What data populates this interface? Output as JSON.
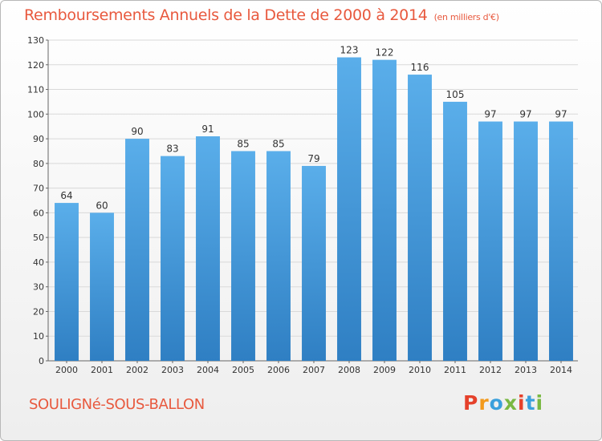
{
  "title": "Remboursements Annuels de la Dette de 2000 à 2014",
  "unit": "(en milliers d'€)",
  "place": "SOULIGNé-SOUS-BALLON",
  "logo": "Proxiti",
  "colors": {
    "title": "#e8593e",
    "bar_light": "#5aaeea",
    "bar_dark": "#2f7fc3",
    "grid": "#d9d9d9"
  },
  "chart_data": {
    "type": "bar",
    "title": "Remboursements Annuels de la Dette de 2000 à 2014",
    "ylabel": "(en milliers d'€)",
    "xlabel": "",
    "categories": [
      "2000",
      "2001",
      "2002",
      "2003",
      "2004",
      "2005",
      "2006",
      "2007",
      "2008",
      "2009",
      "2010",
      "2011",
      "2012",
      "2013",
      "2014"
    ],
    "values": [
      64,
      60,
      90,
      83,
      91,
      85,
      85,
      79,
      123,
      122,
      116,
      105,
      97,
      97,
      97
    ],
    "ylim": [
      0,
      130
    ],
    "yticks": [
      0,
      10,
      20,
      30,
      40,
      50,
      60,
      70,
      80,
      90,
      100,
      110,
      120,
      130
    ],
    "grid": true,
    "data_labels": true
  }
}
